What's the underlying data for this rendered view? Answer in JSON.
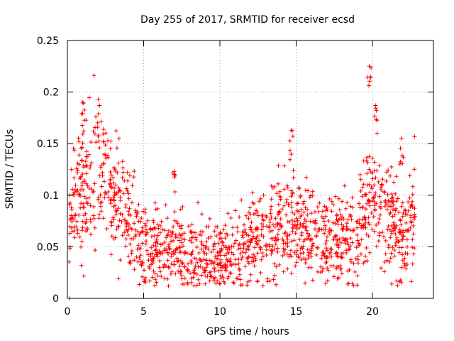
{
  "chart_data": {
    "type": "scatter",
    "title": "Day 255 of 2017, SRMTID for receiver ecsd",
    "xlabel": "GPS time / hours",
    "ylabel": "SRMTID / TECUs",
    "xlim": [
      0,
      24
    ],
    "ylim": [
      0,
      0.25
    ],
    "x_ticks": [
      0,
      5,
      10,
      15,
      20
    ],
    "x_tick_labels": [
      "0",
      "5",
      "10",
      "15",
      "20"
    ],
    "y_ticks": [
      0,
      0.05,
      0.1,
      0.15,
      0.2,
      0.25
    ],
    "y_tick_labels": [
      "0",
      "0.05",
      "0.1",
      "0.15",
      "0.2",
      "0.25"
    ],
    "grid": true,
    "marker": "+",
    "color": "#ff0000",
    "series": [
      {
        "name": "SRMTID",
        "x_range": [
          0.1,
          22.8
        ],
        "trend_x": [
          0.1,
          1.0,
          2.0,
          3.0,
          4.0,
          5.0,
          6.0,
          7.0,
          8.0,
          9.0,
          10.0,
          11.0,
          12.0,
          13.0,
          14.0,
          14.5,
          15.0,
          16.0,
          17.0,
          18.0,
          19.0,
          19.7,
          20.3,
          21.0,
          22.0,
          22.8
        ],
        "trend_y": [
          0.075,
          0.11,
          0.12,
          0.1,
          0.075,
          0.055,
          0.045,
          0.042,
          0.04,
          0.038,
          0.037,
          0.043,
          0.055,
          0.06,
          0.065,
          0.08,
          0.07,
          0.06,
          0.055,
          0.055,
          0.06,
          0.1,
          0.09,
          0.07,
          0.065,
          0.075
        ],
        "spread": 0.022,
        "approx_point_count": 1500,
        "peaks": [
          {
            "x": 1.0,
            "y": 0.19
          },
          {
            "x": 2.1,
            "y": 0.187
          },
          {
            "x": 7.0,
            "y": 0.123
          },
          {
            "x": 14.7,
            "y": 0.163
          },
          {
            "x": 19.8,
            "y": 0.225
          },
          {
            "x": 20.2,
            "y": 0.187
          },
          {
            "x": 21.9,
            "y": 0.155
          }
        ],
        "outliers": [
          {
            "x": 0.15,
            "y": 0.0
          }
        ]
      }
    ]
  }
}
